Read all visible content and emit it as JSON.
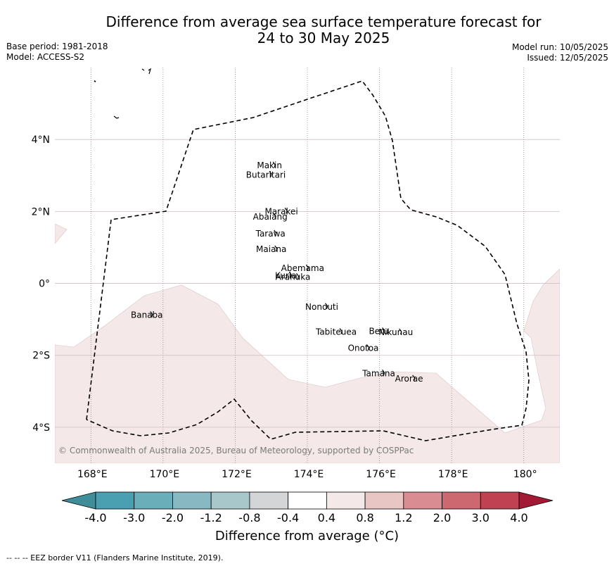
{
  "header": {
    "title_line1": "Difference from average sea surface temperature forecast for",
    "title_line2": "24 to 30 May 2025",
    "base_period": "Base period: 1981-2018",
    "model": "Model: ACCESS-S2",
    "model_run": "Model run: 10/05/2025",
    "issued": "Issued: 12/05/2025"
  },
  "map": {
    "lon_range": [
      167,
      181
    ],
    "lat_range": [
      -5,
      6
    ],
    "lat_ticks": [
      {
        "value": 4,
        "label": "4°N"
      },
      {
        "value": 2,
        "label": "2°N"
      },
      {
        "value": 0,
        "label": "0°"
      },
      {
        "value": -2,
        "label": "2°S"
      },
      {
        "value": -4,
        "label": "4°S"
      }
    ],
    "lon_ticks": [
      {
        "value": 168,
        "label": "168°E"
      },
      {
        "value": 170,
        "label": "170°E"
      },
      {
        "value": 172,
        "label": "172°E"
      },
      {
        "value": 174,
        "label": "174°E"
      },
      {
        "value": 176,
        "label": "176°E"
      },
      {
        "value": 178,
        "label": "178°E"
      },
      {
        "value": 180,
        "label": "180°"
      }
    ],
    "islands": [
      {
        "name": "Makin",
        "lon": 172.95,
        "lat": 3.28
      },
      {
        "name": "Butaritari",
        "lon": 172.85,
        "lat": 3.02
      },
      {
        "name": "Marakei",
        "lon": 173.28,
        "lat": 2.0
      },
      {
        "name": "Abaiang",
        "lon": 172.97,
        "lat": 1.85
      },
      {
        "name": "Tarawa",
        "lon": 172.98,
        "lat": 1.38
      },
      {
        "name": "Maiana",
        "lon": 173.0,
        "lat": 0.95
      },
      {
        "name": "Abemama",
        "lon": 173.87,
        "lat": 0.42
      },
      {
        "name": "Kuria",
        "lon": 173.4,
        "lat": 0.22
      },
      {
        "name": "Aranuka",
        "lon": 173.6,
        "lat": 0.18
      },
      {
        "name": "Nonouti",
        "lon": 174.4,
        "lat": -0.65
      },
      {
        "name": "Banaba",
        "lon": 169.55,
        "lat": -0.88
      },
      {
        "name": "Tabiteuea",
        "lon": 174.8,
        "lat": -1.35
      },
      {
        "name": "Beru",
        "lon": 175.98,
        "lat": -1.33
      },
      {
        "name": "Nikunau",
        "lon": 176.45,
        "lat": -1.36
      },
      {
        "name": "Onotoa",
        "lon": 175.55,
        "lat": -1.8
      },
      {
        "name": "Tamana",
        "lon": 175.98,
        "lat": -2.5
      },
      {
        "name": "Arorae",
        "lon": 176.82,
        "lat": -2.65
      }
    ],
    "copyright": "© Commonwealth of Australia 2025, Bureau of Meteorology, supported by COSPPac"
  },
  "colorbar": {
    "ticks": [
      "-4.0",
      "-3.0",
      "-2.0",
      "-1.2",
      "-0.8",
      "-0.4",
      "0.4",
      "0.8",
      "1.2",
      "2.0",
      "3.0",
      "4.0"
    ],
    "colors": [
      "#3e8d98",
      "#4aa0b1",
      "#6aaeb9",
      "#88b8c1",
      "#a8c7cb",
      "#d3d5d6",
      "#ffffff",
      "#f5e8e8",
      "#e8c6c4",
      "#d98d93",
      "#cd6770",
      "#c04252",
      "#a31a37"
    ],
    "label": "Difference from average (°C)"
  },
  "anomaly_color": "#f5e8e8",
  "footer": "-- -- -- EEZ border V11 (Flanders Marine Institute, 2019)."
}
